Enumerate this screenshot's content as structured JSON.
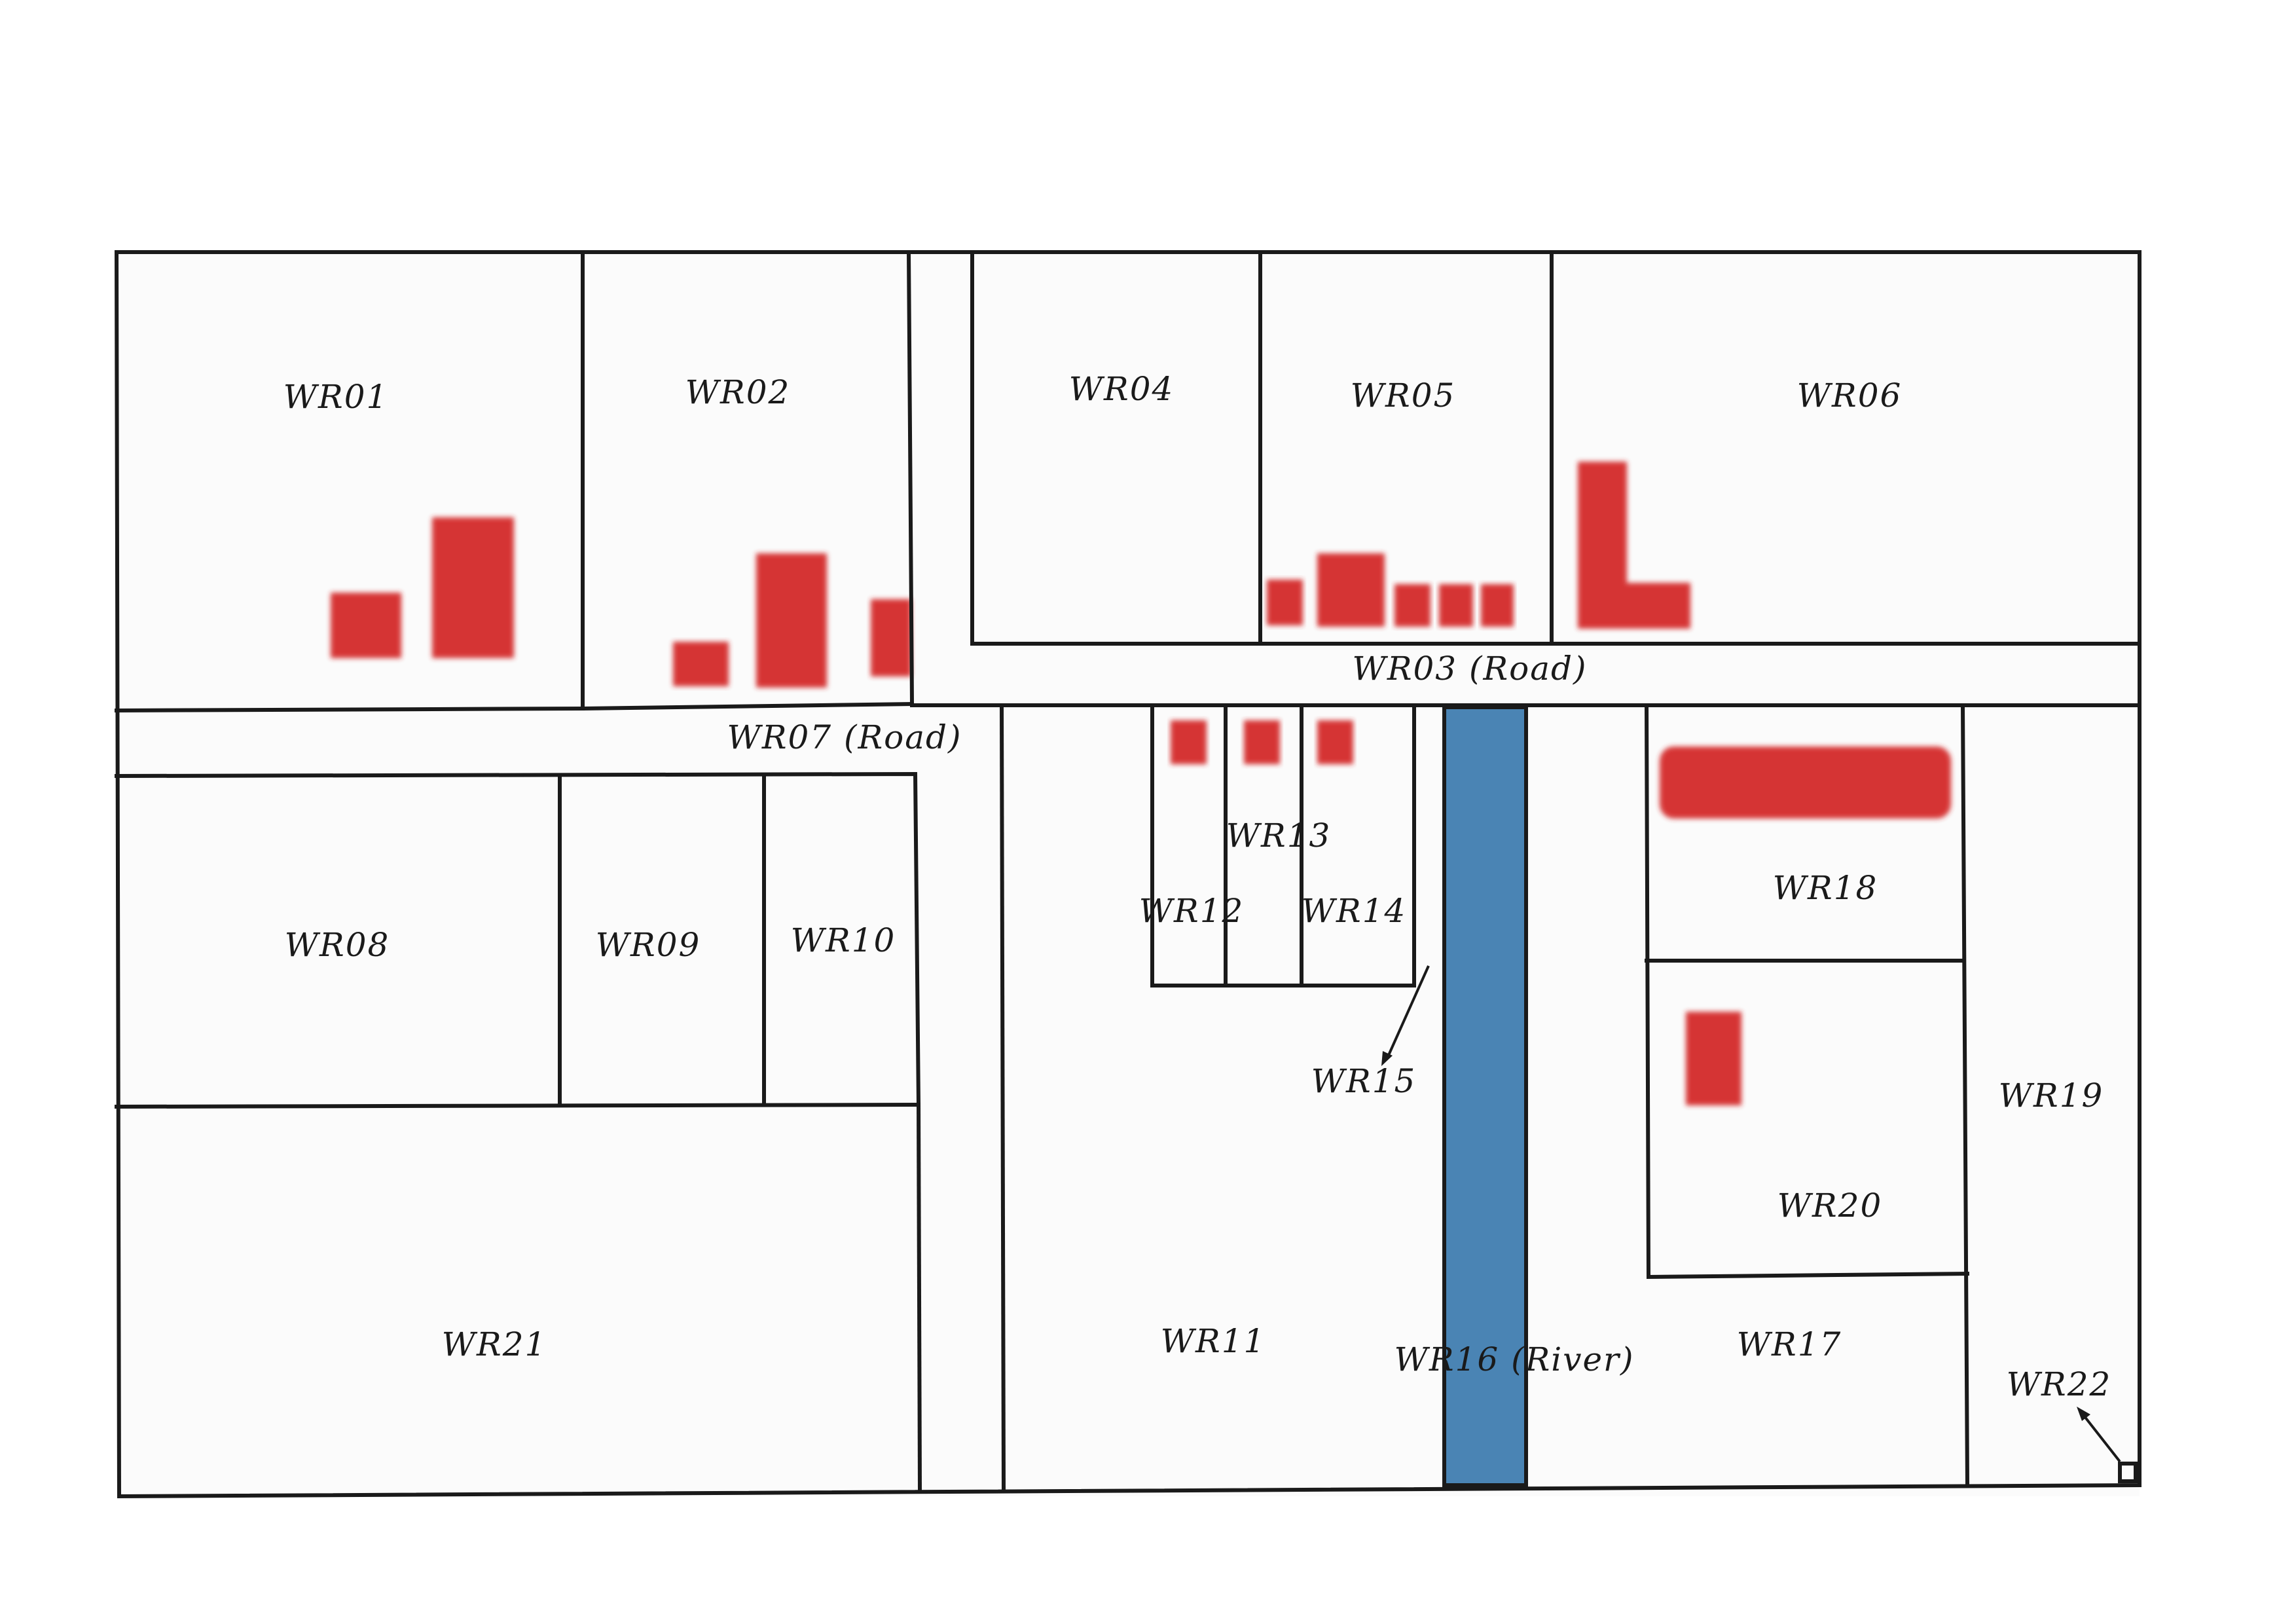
{
  "colors": {
    "background": "#fbfbfb",
    "outline": "#1a1a1a",
    "building": "#d42a2a",
    "river": "#4a84b4"
  },
  "parcels": [
    {
      "id": "WR01",
      "label": "WR01"
    },
    {
      "id": "WR02",
      "label": "WR02"
    },
    {
      "id": "WR03",
      "label": "WR03 (Road)"
    },
    {
      "id": "WR04",
      "label": "WR04"
    },
    {
      "id": "WR05",
      "label": "WR05"
    },
    {
      "id": "WR06",
      "label": "WR06"
    },
    {
      "id": "WR07",
      "label": "WR07 (Road)"
    },
    {
      "id": "WR08",
      "label": "WR08"
    },
    {
      "id": "WR09",
      "label": "WR09"
    },
    {
      "id": "WR10",
      "label": "WR10"
    },
    {
      "id": "WR11",
      "label": "WR11"
    },
    {
      "id": "WR12",
      "label": "WR12"
    },
    {
      "id": "WR13",
      "label": "WR13"
    },
    {
      "id": "WR14",
      "label": "WR14"
    },
    {
      "id": "WR15",
      "label": "WR15"
    },
    {
      "id": "WR16",
      "label": "WR16 (River)"
    },
    {
      "id": "WR17",
      "label": "WR17"
    },
    {
      "id": "WR18",
      "label": "WR18"
    },
    {
      "id": "WR19",
      "label": "WR19"
    },
    {
      "id": "WR20",
      "label": "WR20"
    },
    {
      "id": "WR21",
      "label": "WR21"
    },
    {
      "id": "WR22",
      "label": "WR22"
    }
  ]
}
